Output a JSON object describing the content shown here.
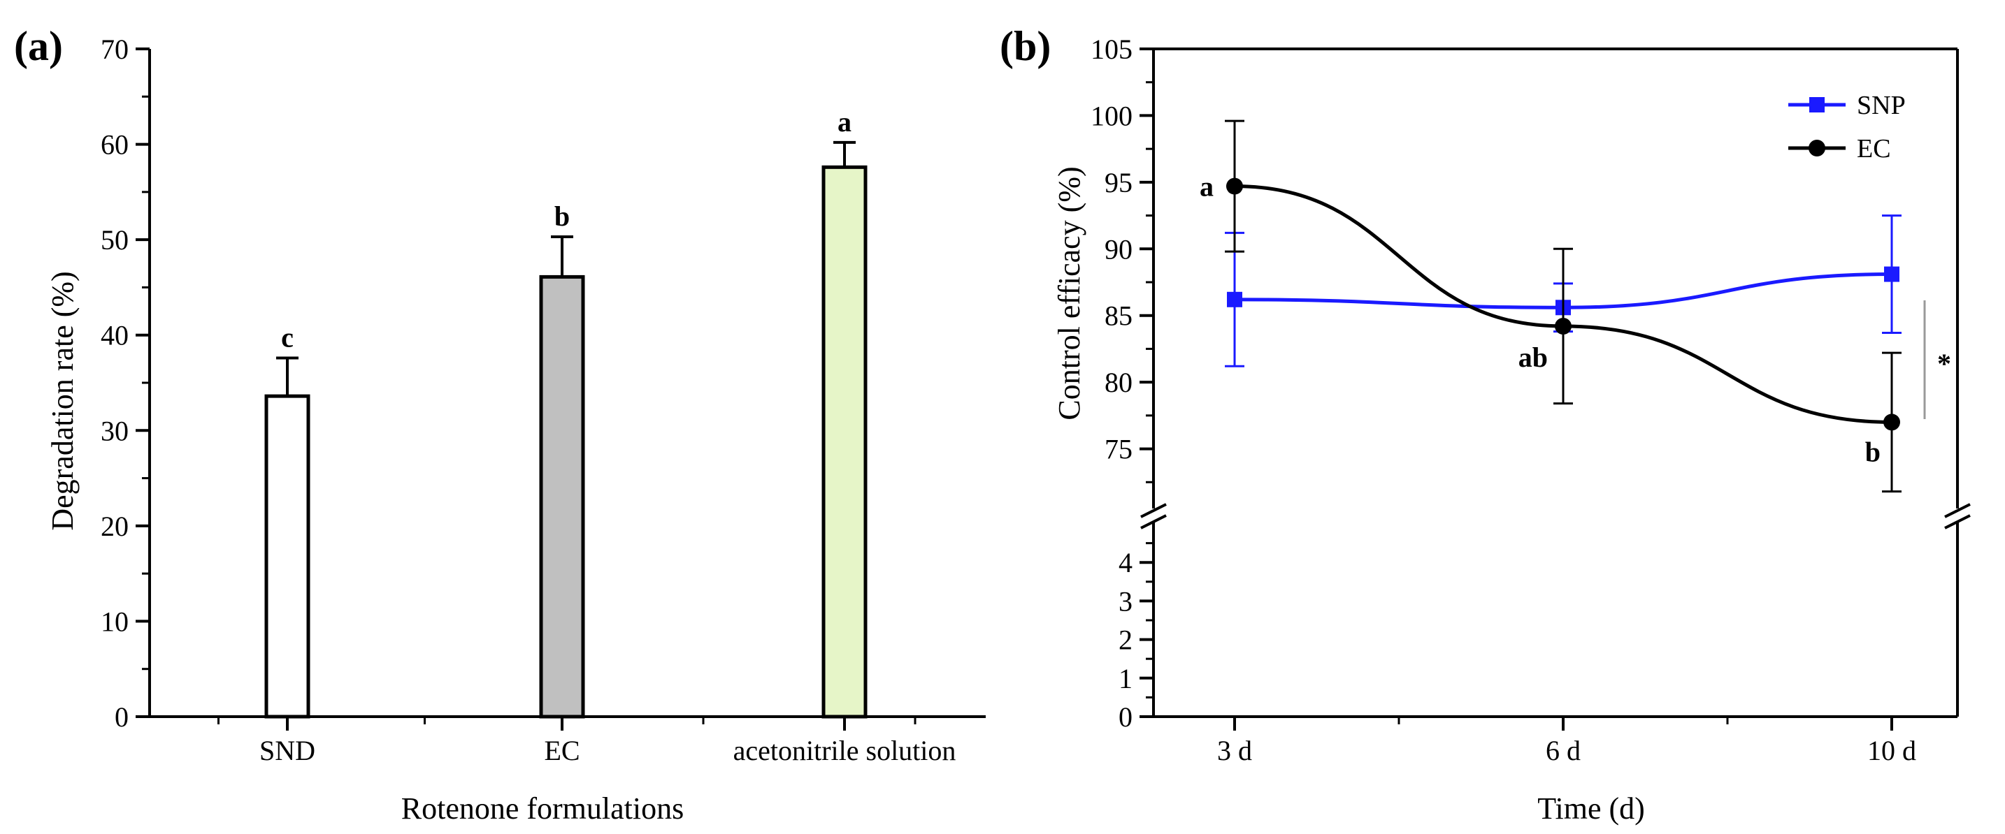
{
  "chart_data": [
    {
      "panel": "(a)",
      "type": "bar",
      "xlabel": "Rotenone formulations",
      "ylabel": "Degradation rate (%)",
      "ylim": [
        0,
        70
      ],
      "yticks": [
        "0",
        "10",
        "20",
        "30",
        "40",
        "50",
        "60",
        "70"
      ],
      "categories": [
        "SND",
        "EC",
        "acetonitrile solution"
      ],
      "values": [
        33.6,
        46.1,
        57.6
      ],
      "errors": [
        4.0,
        4.2,
        2.6
      ],
      "significance": [
        "c",
        "b",
        "a"
      ],
      "colors": [
        "#ffffff",
        "#c0c0c0",
        "#e6f5c8"
      ]
    },
    {
      "panel": "(b)",
      "type": "line",
      "xlabel": "Time (d)",
      "ylabel": "Control efficacy (%)",
      "categories": [
        "3 d",
        "6 d",
        "10 d"
      ],
      "ylim_upper": [
        70,
        105
      ],
      "yticks_upper": [
        "75",
        "80",
        "85",
        "90",
        "95",
        "100",
        "105"
      ],
      "ylim_lower": [
        0,
        5
      ],
      "yticks_lower": [
        "0",
        "1",
        "2",
        "3",
        "4"
      ],
      "series": [
        {
          "name": "SNP",
          "color": "#1a1aff",
          "marker": "square",
          "values": [
            86.2,
            85.6,
            88.1
          ],
          "errors": [
            5.0,
            1.8,
            4.4
          ]
        },
        {
          "name": "EC",
          "color": "#000000",
          "marker": "circle",
          "values": [
            94.7,
            84.2,
            77.0
          ],
          "errors": [
            4.9,
            5.8,
            5.2
          ]
        }
      ],
      "significance": [
        "a",
        "ab",
        "b"
      ],
      "annotation": "*"
    }
  ]
}
